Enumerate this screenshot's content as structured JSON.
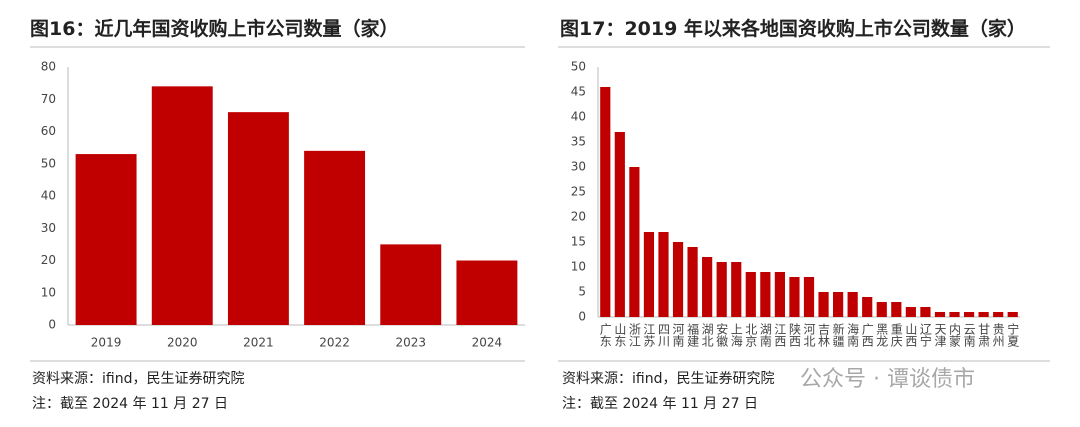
{
  "chart_data": [
    {
      "type": "bar",
      "title": "图16：近几年国资收购上市公司数量（家）",
      "categories": [
        "2019",
        "2020",
        "2021",
        "2022",
        "2023",
        "2024"
      ],
      "values": [
        53,
        74,
        66,
        54,
        25,
        20
      ],
      "color": "#c00000",
      "ylim": [
        0,
        80
      ],
      "yticks": [
        0,
        10,
        20,
        30,
        40,
        50,
        60,
        70,
        80
      ],
      "grid": false,
      "source": "资料来源：ifind，民生证券研究院",
      "note": "注：截至 2024 年 11 月 27 日"
    },
    {
      "type": "bar",
      "title": "图17：2019 年以来各地国资收购上市公司数量（家）",
      "categories": [
        "广东",
        "山东",
        "浙江",
        "江苏",
        "四川",
        "河南",
        "福建",
        "湖北",
        "安徽",
        "上海",
        "北京",
        "湖南",
        "江西",
        "陕西",
        "河北",
        "吉林",
        "新疆",
        "海南",
        "广西",
        "黑龙",
        "重庆",
        "山西",
        "辽宁",
        "天津",
        "内蒙",
        "云南",
        "甘肃",
        "贵州",
        "宁夏"
      ],
      "values": [
        46,
        37,
        30,
        17,
        17,
        15,
        14,
        12,
        11,
        11,
        9,
        9,
        9,
        8,
        8,
        5,
        5,
        5,
        4,
        3,
        3,
        2,
        2,
        1,
        1,
        1,
        1,
        1,
        1
      ],
      "color": "#c00000",
      "ylim": [
        0,
        50
      ],
      "yticks": [
        0,
        5,
        10,
        15,
        20,
        25,
        30,
        35,
        40,
        45,
        50
      ],
      "grid": false,
      "source": "资料来源：ifind，民生证券研究院",
      "note": "注：截至 2024 年 11 月 27 日"
    }
  ],
  "watermark": "公众号 · 谭谈债市"
}
